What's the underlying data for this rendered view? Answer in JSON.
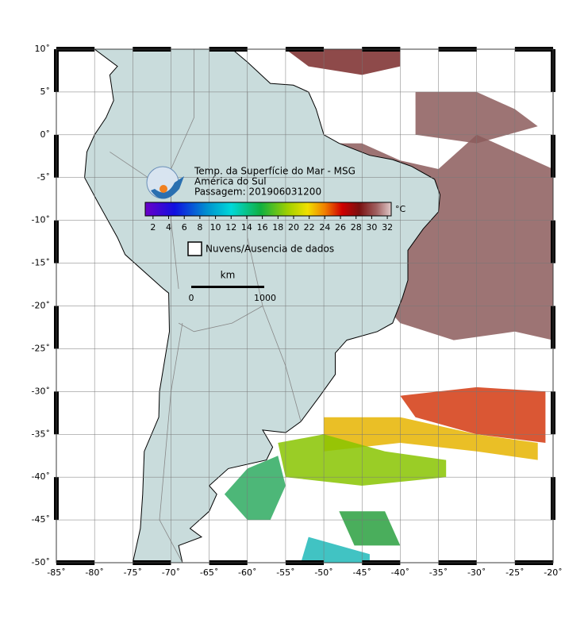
{
  "header": {
    "title": "Temp. da Superfície do Mar - MSG",
    "region": "América do Sul",
    "pass": "Passagem: 201906031200"
  },
  "colorbar": {
    "clim": [
      1,
      32.5
    ],
    "ticks": [
      2,
      4,
      6,
      8,
      10,
      12,
      14,
      16,
      18,
      20,
      22,
      24,
      26,
      28,
      30,
      32
    ],
    "unit": "°C"
  },
  "legend": {
    "label": "Nuvens/Ausencia de dados"
  },
  "scale_bar": {
    "unit": "km",
    "start": 0,
    "end": 1000
  },
  "map": {
    "xlim": [
      -85,
      -20
    ],
    "ylim": [
      -50,
      10
    ],
    "lon_ticks": [
      {
        "value": -85,
        "label": "-85˚"
      },
      {
        "value": -80,
        "label": "-80˚"
      },
      {
        "value": -75,
        "label": "-75˚"
      },
      {
        "value": -70,
        "label": "-70˚"
      },
      {
        "value": -65,
        "label": "-65˚"
      },
      {
        "value": -60,
        "label": "-60˚"
      },
      {
        "value": -55,
        "label": "-55˚"
      },
      {
        "value": -50,
        "label": "-50˚"
      },
      {
        "value": -45,
        "label": "-45˚"
      },
      {
        "value": -40,
        "label": "-40˚"
      },
      {
        "value": -35,
        "label": "-35˚"
      },
      {
        "value": -30,
        "label": "-30˚"
      },
      {
        "value": -25,
        "label": "-25˚"
      },
      {
        "value": -20,
        "label": "-20˚"
      }
    ],
    "lat_ticks": [
      {
        "value": 10,
        "label": "10˚"
      },
      {
        "value": 5,
        "label": "5˚"
      },
      {
        "value": 0,
        "label": "0˚"
      },
      {
        "value": -5,
        "label": "-5˚"
      },
      {
        "value": -10,
        "label": "-10˚"
      },
      {
        "value": -15,
        "label": "-15˚"
      },
      {
        "value": -20,
        "label": "-20˚"
      },
      {
        "value": -25,
        "label": "-25˚"
      },
      {
        "value": -30,
        "label": "-30˚"
      },
      {
        "value": -35,
        "label": "-35˚"
      },
      {
        "value": -40,
        "label": "-40˚"
      },
      {
        "value": -45,
        "label": "-45˚"
      },
      {
        "value": -50,
        "label": "-50˚"
      }
    ]
  }
}
